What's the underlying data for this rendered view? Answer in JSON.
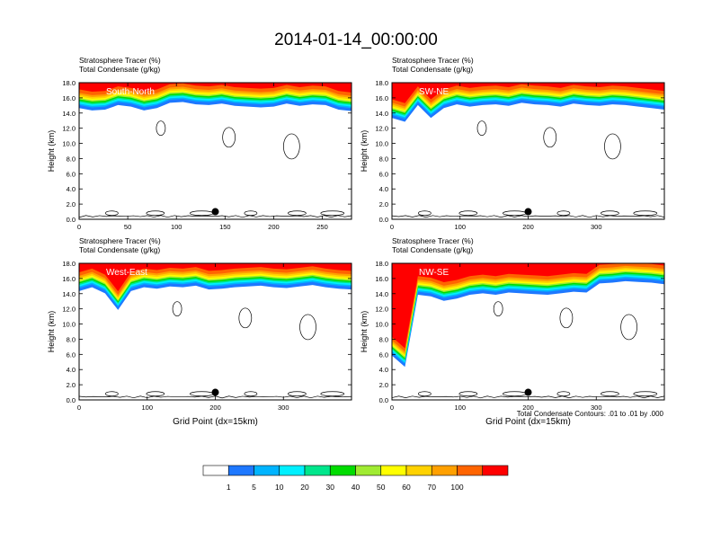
{
  "page_title": "2014-01-14_00:00:00",
  "footnote": "Total Condensate Contours: .01 to .01 by .000",
  "colorbar": {
    "labels": [
      "1",
      "5",
      "10",
      "20",
      "30",
      "40",
      "50",
      "60",
      "70",
      "100"
    ],
    "colors": [
      "#ffffff",
      "#1e78ff",
      "#00b4ff",
      "#00f0ff",
      "#00e68c",
      "#00dc00",
      "#a0eb32",
      "#ffff00",
      "#ffd200",
      "#ffa000",
      "#ff6400",
      "#ff0000"
    ]
  },
  "chart_data": [
    {
      "type": "heatmap",
      "panel_label": "South-North",
      "title_lines": [
        "Stratosphere Tracer   (%)",
        "Total Condensate   (g/kg)"
      ],
      "ylabel": "Height (km)",
      "xlabel": "",
      "ylim": [
        0,
        18
      ],
      "yticks": [
        "0.0",
        "2.0",
        "4.0",
        "6.0",
        "8.0",
        "10.0",
        "12.0",
        "14.0",
        "16.0",
        "18.0"
      ],
      "xlim": [
        0,
        280
      ],
      "xticks": [
        0,
        50,
        100,
        150,
        200,
        250
      ],
      "tracer_base_km": [
        14.8,
        14.5,
        14.6,
        15.2,
        15.0,
        14.5,
        14.8,
        15.5,
        15.6,
        15.3,
        15.2,
        15.4,
        15.1,
        15.0,
        14.9,
        15.0,
        15.4,
        15.1,
        15.3,
        15.2,
        14.6,
        14.4
      ],
      "marker": {
        "x": 140,
        "y": 1.0
      },
      "contour_value": ".01"
    },
    {
      "type": "heatmap",
      "panel_label": "SW-NE",
      "title_lines": [
        "Stratosphere Tracer   (%)",
        "Total Condensate   (g/kg)"
      ],
      "ylabel": "Height (km)",
      "xlabel": "",
      "ylim": [
        0,
        18
      ],
      "yticks": [
        "0.0",
        "2.0",
        "4.0",
        "6.0",
        "8.0",
        "10.0",
        "12.0",
        "14.0",
        "16.0",
        "18.0"
      ],
      "xlim": [
        0,
        400
      ],
      "xticks": [
        0,
        100,
        200,
        300
      ],
      "tracer_base_km": [
        13.5,
        13.0,
        15.2,
        13.5,
        14.8,
        15.3,
        15.0,
        15.2,
        15.3,
        15.1,
        15.5,
        15.3,
        15.2,
        15.0,
        15.4,
        15.2,
        15.1,
        15.3,
        15.2,
        15.0,
        14.8,
        14.6
      ],
      "marker": {
        "x": 200,
        "y": 1.0
      },
      "contour_value": ".01"
    },
    {
      "type": "heatmap",
      "panel_label": "West-East",
      "title_lines": [
        "Stratosphere Tracer   (%)",
        "Total Condensate   (g/kg)"
      ],
      "ylabel": "Height (km)",
      "xlabel": "Grid Point (dx=15km)",
      "ylim": [
        0,
        18
      ],
      "yticks": [
        "0.0",
        "2.0",
        "4.0",
        "6.0",
        "8.0",
        "10.0",
        "12.0",
        "14.0",
        "16.0",
        "18.0"
      ],
      "xlim": [
        0,
        400
      ],
      "xticks": [
        0,
        100,
        200,
        300
      ],
      "tracer_base_km": [
        14.5,
        15.0,
        14.2,
        12.0,
        14.5,
        15.0,
        14.8,
        15.1,
        15.0,
        15.2,
        14.7,
        14.8,
        15.0,
        15.1,
        15.2,
        15.0,
        14.9,
        15.1,
        15.3,
        15.0,
        14.8,
        14.7
      ],
      "marker": {
        "x": 200,
        "y": 1.0
      },
      "contour_value": ".01"
    },
    {
      "type": "heatmap",
      "panel_label": "NW-SE",
      "title_lines": [
        "Stratosphere Tracer   (%)",
        "Total Condensate   (g/kg)"
      ],
      "ylabel": "Height (km)",
      "xlabel": "Grid Point (dx=15km)",
      "ylim": [
        0,
        18
      ],
      "yticks": [
        "0.0",
        "2.0",
        "4.0",
        "6.0",
        "8.0",
        "10.0",
        "12.0",
        "14.0",
        "16.0",
        "18.0"
      ],
      "xlim": [
        0,
        400
      ],
      "xticks": [
        0,
        100,
        200,
        300
      ],
      "tracer_base_km": [
        6.0,
        4.5,
        14.0,
        13.8,
        13.2,
        13.5,
        14.0,
        14.2,
        14.0,
        14.3,
        14.2,
        14.1,
        14.0,
        14.2,
        14.4,
        14.3,
        15.5,
        15.6,
        15.8,
        15.7,
        15.6,
        15.4
      ],
      "marker": {
        "x": 200,
        "y": 1.0
      },
      "contour_value": ".01"
    }
  ]
}
